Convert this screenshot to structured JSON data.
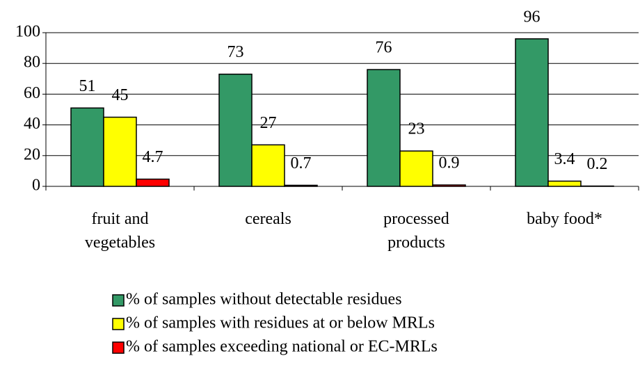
{
  "chart_data": {
    "type": "bar",
    "categories": [
      "fruit and vegetables",
      "cereals",
      "processed products",
      "baby food*"
    ],
    "series": [
      {
        "name": "% of samples without detectable residues",
        "color": "#339966",
        "values": [
          51,
          73,
          76,
          96
        ]
      },
      {
        "name": "% of samples with residues at or below MRLs",
        "color": "#ffff00",
        "values": [
          45,
          27,
          23,
          3.4
        ]
      },
      {
        "name": "% of samples exceeding national or EC-MRLs",
        "color": "#ff0000",
        "values": [
          4.7,
          0.7,
          0.9,
          0.2
        ]
      }
    ],
    "ylim": [
      0,
      100
    ],
    "yticks": [
      0,
      20,
      40,
      60,
      80,
      100
    ],
    "grid": true,
    "legend": "bottom"
  }
}
